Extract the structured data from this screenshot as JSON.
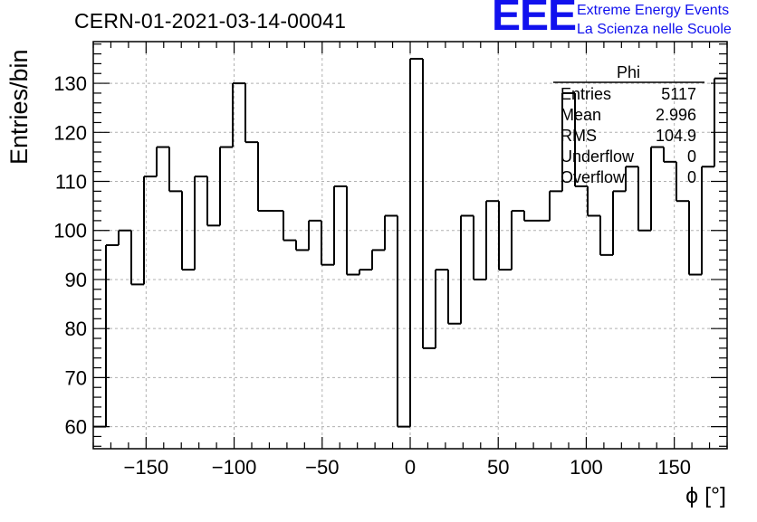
{
  "header": {
    "run_title": "CERN-01-2021-03-14-00041",
    "logo_text": "EEE",
    "logo_line1": "Extreme Energy Events",
    "logo_line2": "La Scienza nelle Scuole"
  },
  "colors": {
    "logo": "#1111ee",
    "histogram_line": "#000000",
    "grid": "#b0b0b0"
  },
  "stats_box": {
    "title": "Phi",
    "rows": [
      {
        "label": "Entries",
        "value": "5117"
      },
      {
        "label": "Mean",
        "value": "2.996"
      },
      {
        "label": "RMS",
        "value": "104.9"
      },
      {
        "label": "Underflow",
        "value": "0"
      },
      {
        "label": "Overflow",
        "value": "0"
      }
    ]
  },
  "chart_data": {
    "type": "bar",
    "style": "step-histogram",
    "title": "CERN-01-2021-03-14-00041",
    "xlabel": "ϕ [°]",
    "ylabel": "Entries/bin",
    "xlim": [
      -180,
      180
    ],
    "ylim": [
      55.5,
      138.5
    ],
    "grid": true,
    "bin_edges": [
      -180,
      -172.8,
      -165.6,
      -158.4,
      -151.2,
      -144,
      -136.8,
      -129.6,
      -122.4,
      -115.2,
      -108,
      -100.8,
      -93.6,
      -86.4,
      -79.2,
      -72,
      -64.8,
      -57.6,
      -50.4,
      -43.2,
      -36,
      -28.8,
      -21.6,
      -14.4,
      -7.2,
      0,
      7.2,
      14.4,
      21.6,
      28.8,
      36,
      43.2,
      50.4,
      57.6,
      64.8,
      72,
      79.2,
      86.4,
      93.6,
      100.8,
      108,
      115.2,
      122.4,
      129.6,
      136.8,
      144,
      151.2,
      158.4,
      165.6,
      172.8,
      180
    ],
    "values": [
      60,
      97,
      100,
      89,
      111,
      117,
      108,
      92,
      111,
      101,
      117,
      130,
      118,
      104,
      104,
      98,
      96,
      102,
      93,
      109,
      91,
      92,
      96,
      103,
      60,
      135,
      76,
      92,
      81,
      103,
      90,
      106,
      92,
      104,
      102,
      102,
      108,
      128,
      109,
      103,
      95,
      108,
      113,
      100,
      117,
      114,
      106,
      91,
      113,
      131
    ],
    "x_ticks": [
      -150,
      -100,
      -50,
      0,
      50,
      100,
      150
    ],
    "x_tick_labels": [
      "−150",
      "−100",
      "−50",
      "0",
      "50",
      "100",
      "150"
    ],
    "y_ticks": [
      60,
      70,
      80,
      90,
      100,
      110,
      120,
      130
    ],
    "y_tick_labels": [
      "60",
      "70",
      "80",
      "90",
      "100",
      "110",
      "120",
      "130"
    ]
  }
}
